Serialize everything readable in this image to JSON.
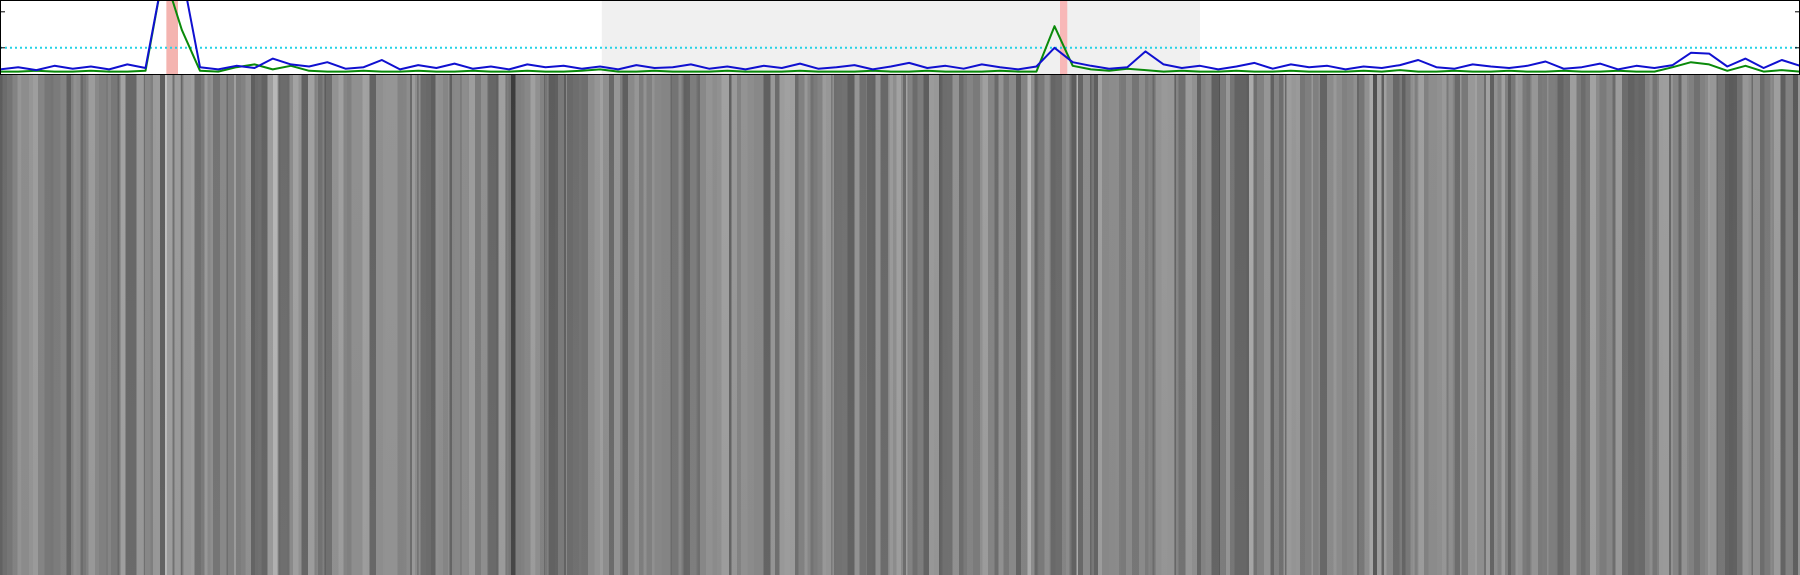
{
  "chart_data": {
    "type": "line",
    "xlim": [
      0,
      99
    ],
    "ylim": [
      0,
      1
    ],
    "yticks": [
      0.35,
      0.85
    ],
    "threshold": {
      "value": 0.35,
      "color": "#22d3e6"
    },
    "spans": [
      {
        "start": 33.1,
        "end": 66.0,
        "color": "#f0f0f0"
      },
      {
        "start": 9.15,
        "end": 9.79,
        "color": "#f4b4b0"
      },
      {
        "start": 58.3,
        "end": 58.7,
        "color": "#f8b8b8"
      }
    ],
    "series": [
      {
        "color": "#0a8a0a",
        "values": [
          0.02,
          0.02,
          0.03,
          0.02,
          0.02,
          0.03,
          0.02,
          0.02,
          0.03,
          1.4,
          0.6,
          0.03,
          0.02,
          0.08,
          0.12,
          0.05,
          0.1,
          0.03,
          0.02,
          0.02,
          0.03,
          0.02,
          0.02,
          0.03,
          0.02,
          0.02,
          0.03,
          0.02,
          0.02,
          0.03,
          0.02,
          0.02,
          0.03,
          0.05,
          0.02,
          0.02,
          0.03,
          0.02,
          0.02,
          0.02,
          0.03,
          0.02,
          0.02,
          0.02,
          0.03,
          0.02,
          0.02,
          0.02,
          0.03,
          0.02,
          0.02,
          0.03,
          0.02,
          0.02,
          0.02,
          0.03,
          0.02,
          0.02,
          0.65,
          0.1,
          0.05,
          0.03,
          0.06,
          0.04,
          0.02,
          0.03,
          0.02,
          0.02,
          0.03,
          0.02,
          0.02,
          0.03,
          0.02,
          0.02,
          0.02,
          0.03,
          0.02,
          0.04,
          0.02,
          0.02,
          0.03,
          0.02,
          0.02,
          0.03,
          0.02,
          0.02,
          0.03,
          0.02,
          0.02,
          0.03,
          0.02,
          0.02,
          0.08,
          0.15,
          0.12,
          0.03,
          0.1,
          0.02,
          0.04,
          0.02
        ]
      },
      {
        "color": "#1010d0",
        "values": [
          0.05,
          0.08,
          0.04,
          0.1,
          0.06,
          0.09,
          0.05,
          0.12,
          0.07,
          1.4,
          1.4,
          0.08,
          0.05,
          0.1,
          0.07,
          0.2,
          0.12,
          0.09,
          0.15,
          0.06,
          0.08,
          0.18,
          0.05,
          0.11,
          0.07,
          0.13,
          0.06,
          0.09,
          0.05,
          0.12,
          0.08,
          0.1,
          0.06,
          0.09,
          0.05,
          0.11,
          0.07,
          0.08,
          0.12,
          0.06,
          0.09,
          0.05,
          0.1,
          0.07,
          0.13,
          0.06,
          0.08,
          0.11,
          0.05,
          0.09,
          0.14,
          0.07,
          0.1,
          0.06,
          0.12,
          0.08,
          0.05,
          0.09,
          0.35,
          0.15,
          0.1,
          0.06,
          0.08,
          0.3,
          0.12,
          0.07,
          0.1,
          0.05,
          0.09,
          0.14,
          0.06,
          0.12,
          0.08,
          0.1,
          0.05,
          0.09,
          0.07,
          0.11,
          0.18,
          0.08,
          0.06,
          0.12,
          0.09,
          0.07,
          0.1,
          0.16,
          0.06,
          0.08,
          0.13,
          0.05,
          0.1,
          0.07,
          0.11,
          0.28,
          0.27,
          0.09,
          0.2,
          0.07,
          0.18,
          0.1
        ]
      }
    ]
  }
}
